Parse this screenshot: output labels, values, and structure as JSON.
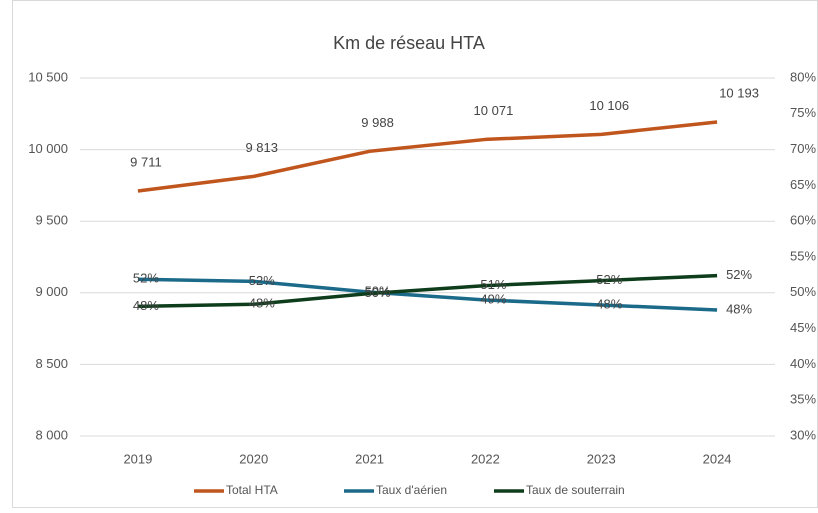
{
  "chart_data": {
    "type": "line",
    "title": "Km de réseau HTA",
    "categories": [
      "2019",
      "2020",
      "2021",
      "2022",
      "2023",
      "2024"
    ],
    "series": [
      {
        "name": "Total HTA",
        "color": "#c0561d",
        "values": [
          9711,
          9813,
          9988,
          10071,
          10106,
          10193
        ],
        "value_labels": [
          "9 711",
          "9 813",
          "9 988",
          "10 071",
          "10 106",
          "10 193"
        ]
      },
      {
        "name": "Taux d'aérien",
        "color": "#1b6a8a",
        "axis": "y2",
        "values": [
          51.9,
          51.6,
          50.1,
          49,
          48.3,
          47.6
        ],
        "value_labels": [
          "52%",
          "52%",
          "50%",
          "49%",
          "48%",
          "48%"
        ]
      },
      {
        "name": "Taux de souterrain",
        "color": "#0e3d1c",
        "axis": "y2",
        "values": [
          48.1,
          48.4,
          49.9,
          51,
          51.7,
          52.4
        ],
        "value_labels": [
          "48%",
          "48%",
          "50%",
          "51%",
          "52%",
          "52%"
        ]
      }
    ],
    "ylim": [
      8000,
      10500
    ],
    "yticks": [
      {
        "value": 8000,
        "label": "8 000"
      },
      {
        "value": 8500,
        "label": "8 500"
      },
      {
        "value": 9000,
        "label": "9 000"
      },
      {
        "value": 9500,
        "label": "9 500"
      },
      {
        "value": 10000,
        "label": "10 000"
      },
      {
        "value": 10500,
        "label": "10 500"
      }
    ],
    "y2lim": [
      30,
      80
    ],
    "y2ticks": [
      {
        "value": 30,
        "label": "30%"
      },
      {
        "value": 35,
        "label": "35%"
      },
      {
        "value": 40,
        "label": "40%"
      },
      {
        "value": 45,
        "label": "45%"
      },
      {
        "value": 50,
        "label": "50%"
      },
      {
        "value": 55,
        "label": "55%"
      },
      {
        "value": 60,
        "label": "60%"
      },
      {
        "value": 65,
        "label": "65%"
      },
      {
        "value": 70,
        "label": "70%"
      },
      {
        "value": 75,
        "label": "75%"
      },
      {
        "value": 80,
        "label": "80%"
      }
    ],
    "grid": true,
    "legend": "bottom"
  }
}
